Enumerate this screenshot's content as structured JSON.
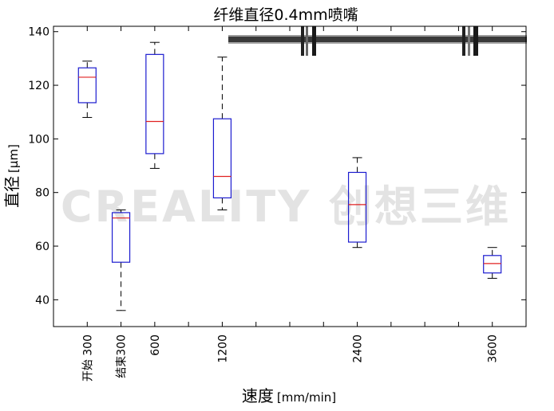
{
  "chart_data": {
    "type": "box",
    "title": "纤维直径0.4mm喷嘴",
    "ylabel_main": "直径",
    "ylabel_unit": "[µm]",
    "xlabel_main": "速度",
    "xlabel_unit": "[mm/min]",
    "ylim": [
      30,
      142
    ],
    "yticks": [
      40,
      60,
      80,
      100,
      120,
      140
    ],
    "grid": false,
    "colors": {
      "box": "#1c1cd0",
      "median": "#e02020",
      "whisker": "#000000"
    },
    "categories": [
      {
        "label": "开始 300",
        "x": 300,
        "min": 108,
        "q1": 113.5,
        "median": 123,
        "q3": 126.5,
        "max": 129
      },
      {
        "label": "结束300",
        "x": 600,
        "min": 36,
        "q1": 54,
        "median": 70.5,
        "q3": 72.5,
        "max": 73.5
      },
      {
        "label": "600",
        "x": 900,
        "min": 89,
        "q1": 94.5,
        "median": 106.5,
        "q3": 131.5,
        "max": 136
      },
      {
        "label": "1200",
        "x": 1500,
        "min": 73.5,
        "q1": 78,
        "median": 86,
        "q3": 107.5,
        "max": 130.5
      },
      {
        "label": "2400",
        "x": 2700,
        "min": 59.5,
        "q1": 61.5,
        "median": 75.5,
        "q3": 87.5,
        "max": 93
      },
      {
        "label": "3600",
        "x": 3900,
        "min": 48,
        "q1": 50,
        "median": 53.5,
        "q3": 56.5,
        "max": 59.5
      }
    ],
    "watermark": "CREALITY 创想三维"
  }
}
